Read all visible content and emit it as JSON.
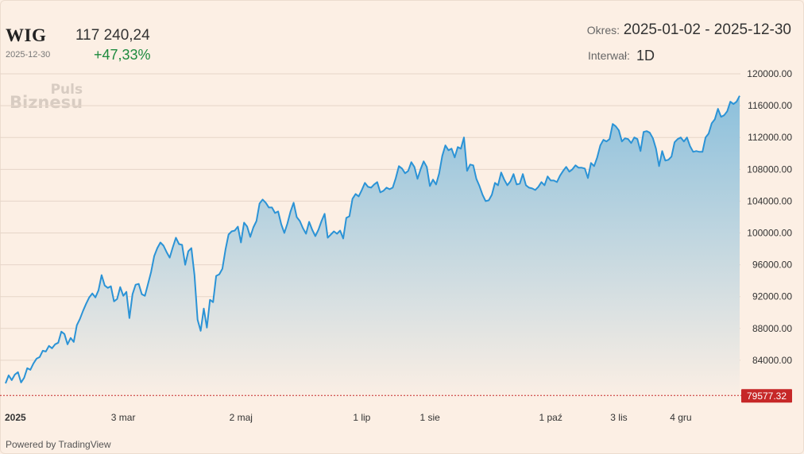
{
  "header": {
    "ticker": "WIG",
    "date": "2025-12-30",
    "price": "117 240,24",
    "change": "+47,33%",
    "period_label": "Okres:",
    "period_value": "2025-01-02 - 2025-12-30",
    "interval_label": "Interwał:",
    "interval_value": "1D"
  },
  "watermark": {
    "line1": "Puls",
    "line2": "Biznesu"
  },
  "footer": {
    "powered": "Powered by TradingView"
  },
  "colors": {
    "line": "#2b93d6",
    "area_top": "#8cc0dc",
    "area_bottom": "#fcefe4",
    "baseline": "#c62828",
    "change": "#1d8a3e"
  },
  "chart_data": {
    "type": "area",
    "ylim": [
      79000,
      121500
    ],
    "yticks": [
      120000,
      116000,
      112000,
      108000,
      104000,
      100000,
      96000,
      92000,
      88000,
      84000
    ],
    "ytick_labels": [
      "120000.00",
      "116000.00",
      "112000.00",
      "108000.00",
      "104000.00",
      "100000.00",
      "96000.00",
      "92000.00",
      "88000.00",
      "84000.00"
    ],
    "xtick_labels": [
      {
        "label": "2025",
        "index": 0,
        "bold": true
      },
      {
        "label": "3 mar",
        "index": 38,
        "bold": false
      },
      {
        "label": "2 maj",
        "index": 76,
        "bold": false
      },
      {
        "label": "1 lip",
        "index": 115,
        "bold": false
      },
      {
        "label": "1 sie",
        "index": 137,
        "bold": false
      },
      {
        "label": "1 paź",
        "index": 176,
        "bold": false
      },
      {
        "label": "3 lis",
        "index": 198,
        "bold": false
      },
      {
        "label": "4 gru",
        "index": 218,
        "bold": false
      }
    ],
    "baseline": {
      "value": 79577.32,
      "label": "79577.32"
    },
    "series": [
      {
        "values": [
          81100,
          82100,
          81500,
          82200,
          82500,
          81200,
          81800,
          83000,
          82800,
          83600,
          84200,
          84400,
          85200,
          85100,
          85800,
          85500,
          86000,
          86200,
          87600,
          87300,
          86000,
          86800,
          86300,
          88400,
          89200,
          90200,
          91100,
          91900,
          92400,
          91900,
          92800,
          94700,
          93400,
          93100,
          93300,
          91400,
          91700,
          93200,
          92100,
          92600,
          89300,
          92300,
          93500,
          93600,
          92300,
          92100,
          93600,
          95100,
          97100,
          98100,
          98800,
          98400,
          97600,
          96900,
          98200,
          99400,
          98600,
          98500,
          96000,
          97700,
          98100,
          94700,
          89100,
          87700,
          90500,
          88100,
          91600,
          91300,
          94600,
          94800,
          95500,
          97900,
          99800,
          100200,
          100300,
          100800,
          98800,
          101300,
          100800,
          99500,
          100700,
          101500,
          103700,
          104200,
          103800,
          103200,
          103200,
          102500,
          102700,
          101100,
          100000,
          101200,
          102700,
          103800,
          102000,
          101500,
          100600,
          99900,
          101400,
          100400,
          99600,
          100400,
          101500,
          102400,
          99400,
          99800,
          100200,
          99900,
          100300,
          99300,
          101900,
          102100,
          104300,
          104900,
          104600,
          105400,
          106300,
          105800,
          105700,
          106100,
          106400,
          105100,
          105300,
          105700,
          105500,
          105700,
          106900,
          108400,
          108100,
          107500,
          107800,
          108900,
          108300,
          106800,
          108000,
          109000,
          108300,
          105900,
          106700,
          106100,
          107500,
          109700,
          111000,
          110400,
          110600,
          109500,
          110800,
          110600,
          112000,
          107800,
          108600,
          108500,
          106800,
          105900,
          104800,
          104000,
          104100,
          104800,
          106300,
          106000,
          107600,
          106700,
          106000,
          106500,
          107400,
          106100,
          106200,
          107400,
          106000,
          105700,
          105600,
          105400,
          105800,
          106400,
          106000,
          107100,
          106600,
          106600,
          106400,
          107200,
          107800,
          108300,
          107700,
          108000,
          108500,
          108200,
          108200,
          108100,
          106900,
          108800,
          108400,
          109500,
          111000,
          111700,
          111500,
          111800,
          113700,
          113400,
          112900,
          111500,
          111900,
          111800,
          111300,
          112000,
          111800,
          110300,
          112700,
          112800,
          112600,
          111900,
          110600,
          108400,
          110300,
          109100,
          109200,
          109600,
          111400,
          111800,
          112000,
          111500,
          112000,
          110900,
          110200,
          110300,
          110200,
          110200,
          112000,
          112500,
          113800,
          114300,
          115600,
          114600,
          114800,
          115300,
          116500,
          116200,
          116500,
          117240
        ]
      }
    ]
  }
}
